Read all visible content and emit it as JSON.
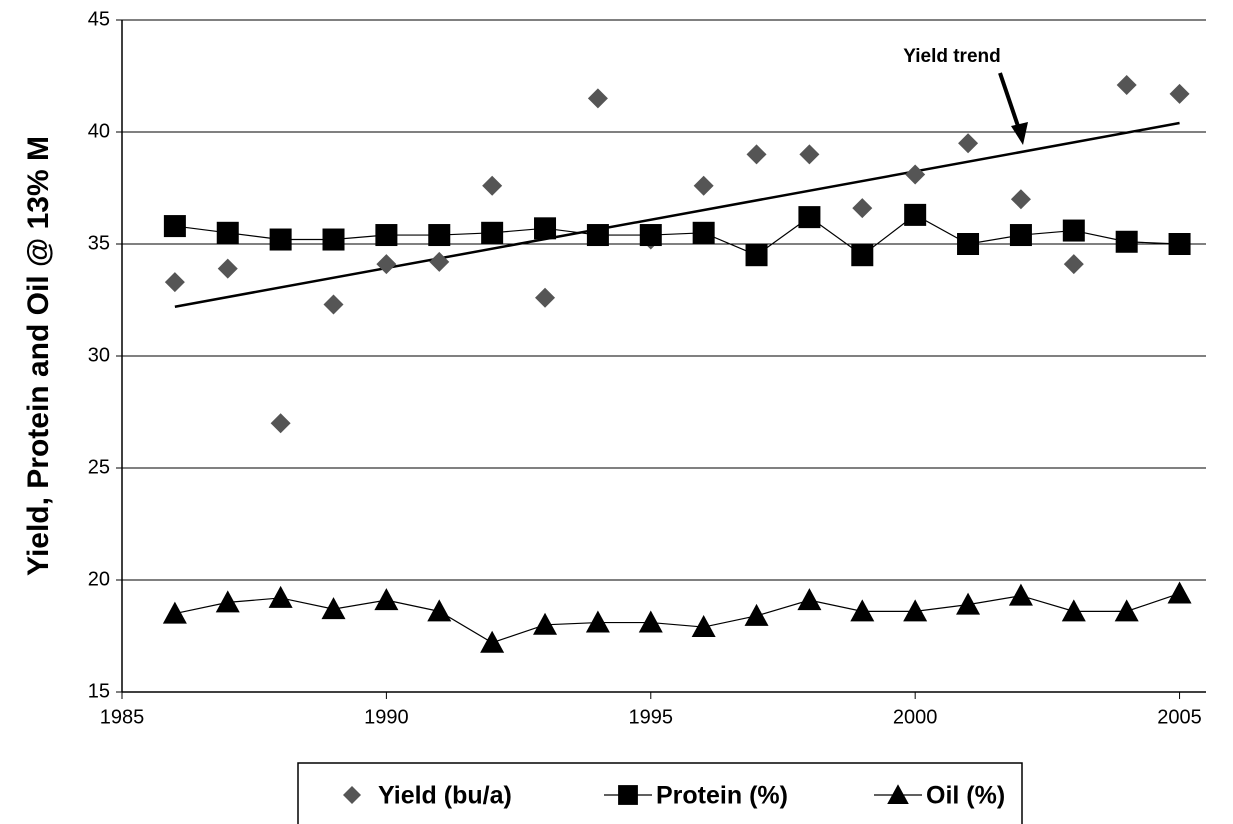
{
  "chart_data": {
    "type": "scatter",
    "y_label": "Yield, Protein and Oil  @ 13% M",
    "annotation": "Yield trend",
    "x": [
      1986,
      1987,
      1988,
      1989,
      1990,
      1991,
      1992,
      1993,
      1994,
      1995,
      1996,
      1997,
      1998,
      1999,
      2000,
      2001,
      2002,
      2003,
      2004,
      2005
    ],
    "series": [
      {
        "name": "Yield (bu/a)",
        "color": "#555555",
        "marker": "diamond",
        "line": false,
        "values": [
          33.3,
          33.9,
          27.0,
          32.3,
          34.1,
          34.2,
          37.6,
          32.6,
          41.5,
          35.2,
          37.6,
          39.0,
          39.0,
          36.6,
          38.1,
          39.5,
          37.0,
          34.1,
          42.1,
          41.7
        ]
      },
      {
        "name": "Protein (%)",
        "color": "#000000",
        "marker": "square",
        "line": true,
        "values": [
          35.8,
          35.5,
          35.2,
          35.2,
          35.4,
          35.4,
          35.5,
          35.7,
          35.4,
          35.4,
          35.5,
          34.5,
          36.2,
          34.5,
          36.3,
          35.0,
          35.4,
          35.6,
          35.1,
          35.0
        ]
      },
      {
        "name": "Oil (%)",
        "color": "#000000",
        "marker": "triangle",
        "line": true,
        "values": [
          18.5,
          19.0,
          19.2,
          18.7,
          19.1,
          18.6,
          17.2,
          18.0,
          18.1,
          18.1,
          17.9,
          18.4,
          19.1,
          18.6,
          18.6,
          18.9,
          19.3,
          18.6,
          18.6,
          19.4
        ]
      }
    ],
    "trend": {
      "x": [
        1986,
        2005
      ],
      "values": [
        32.2,
        40.4
      ]
    },
    "xlim": [
      1985,
      2005.5
    ],
    "xticks": [
      1985,
      1990,
      1995,
      2000,
      2005
    ],
    "ylim": [
      15,
      45
    ],
    "yticks": [
      15,
      20,
      25,
      30,
      35,
      40,
      45
    ],
    "grid": true,
    "legend": "bottom"
  }
}
